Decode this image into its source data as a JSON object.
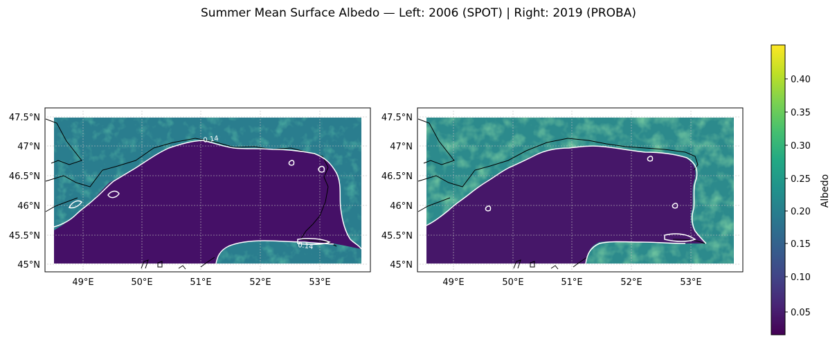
{
  "title": "Summer Mean Surface Albedo — Left: 2006 (SPOT) | Right: 2019 (PROBA)",
  "maps": [
    {
      "lat_ticks": [
        "47.5°N",
        "47°N",
        "46.5°N",
        "46°N",
        "45.5°N",
        "45°N"
      ],
      "lon_ticks": [
        "49°E",
        "50°E",
        "51°E",
        "52°E",
        "53°E"
      ],
      "contour_labels": [
        "0.14",
        "0.14"
      ]
    },
    {
      "lat_ticks": [
        "47.5°N",
        "47°N",
        "46.5°N",
        "46°N",
        "45.5°N",
        "45°N"
      ],
      "lon_ticks": [
        "49°E",
        "50°E",
        "51°E",
        "52°E",
        "53°E"
      ],
      "contour_labels": []
    }
  ],
  "colorbar": {
    "label": "Albedo",
    "ticks": [
      "0.05",
      "0.10",
      "0.15",
      "0.20",
      "0.25",
      "0.30",
      "0.35",
      "0.40"
    ],
    "colormap": "viridis",
    "range": [
      0.01,
      0.45
    ]
  },
  "colors": {
    "water": "#451067",
    "land_dark": "#2a7b8e",
    "land_mid": "#27928d",
    "land_bright": "#3dbb74",
    "contour": "#ffffff",
    "coastline": "#000000",
    "grid": "#bbbbbb"
  }
}
